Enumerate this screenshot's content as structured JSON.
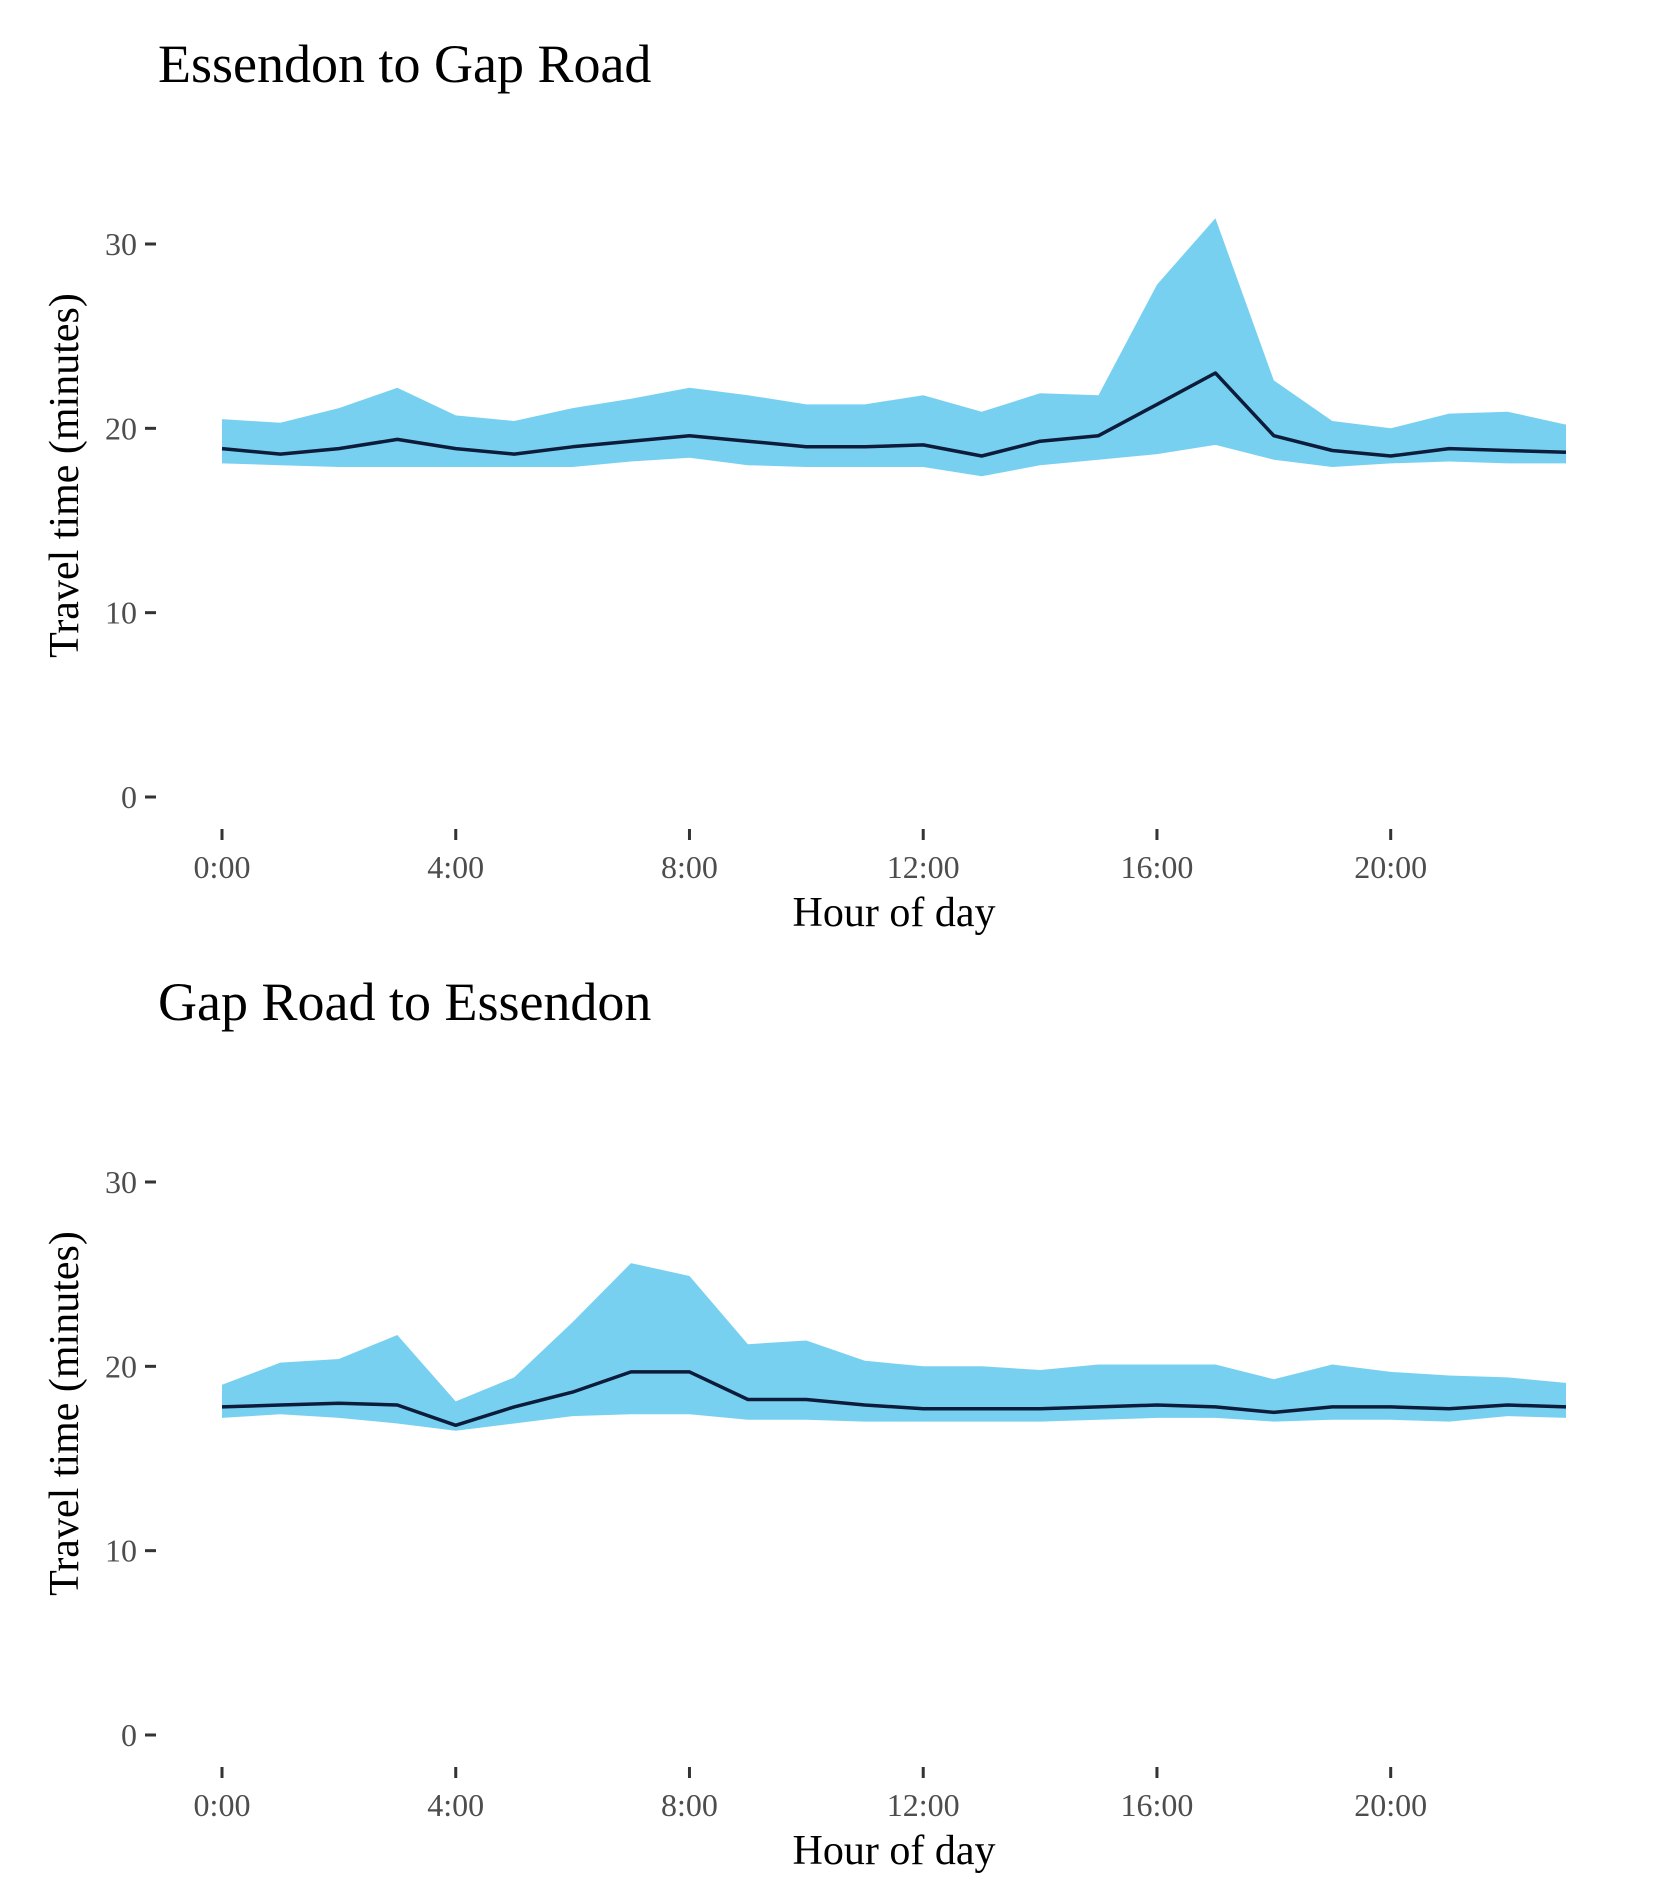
{
  "chart_data": [
    {
      "type": "area",
      "title": "Essendon to Gap Road",
      "xlabel": "Hour of day",
      "ylabel": "Travel time (minutes)",
      "x": [
        0,
        1,
        2,
        3,
        4,
        5,
        6,
        7,
        8,
        9,
        10,
        11,
        12,
        13,
        14,
        15,
        16,
        17,
        18,
        19,
        20,
        21,
        22,
        23
      ],
      "x_ticks": [
        0,
        4,
        8,
        12,
        16,
        20
      ],
      "x_tick_labels": [
        "0:00",
        "4:00",
        "8:00",
        "12:00",
        "16:00",
        "20:00"
      ],
      "y_ticks": [
        0,
        10,
        20,
        30
      ],
      "y_tick_labels": [
        "0",
        "10",
        "20",
        "30"
      ],
      "xlim": [
        -0.5,
        23
      ],
      "ylim": [
        0,
        35
      ],
      "grid": false,
      "band": {
        "lower": [
          18.1,
          18.0,
          17.9,
          17.9,
          17.9,
          17.9,
          17.9,
          18.2,
          18.4,
          18.0,
          17.9,
          17.9,
          17.9,
          17.4,
          18.0,
          18.3,
          18.6,
          19.1,
          18.3,
          17.9,
          18.1,
          18.2,
          18.1,
          18.1
        ],
        "upper": [
          20.5,
          20.3,
          21.1,
          22.2,
          20.7,
          20.4,
          21.1,
          21.6,
          22.2,
          21.8,
          21.3,
          21.3,
          21.8,
          20.9,
          21.9,
          21.8,
          27.8,
          31.4,
          22.6,
          20.4,
          20.0,
          20.8,
          20.9,
          20.2
        ]
      },
      "series": [
        {
          "values": [
            18.9,
            18.6,
            18.9,
            19.4,
            18.9,
            18.6,
            19.0,
            19.3,
            19.6,
            19.3,
            19.0,
            19.0,
            19.1,
            18.5,
            19.3,
            19.6,
            21.3,
            23.0,
            19.6,
            18.8,
            18.5,
            18.9,
            18.8,
            18.7
          ]
        }
      ],
      "colors": {
        "band": "#78d0f1",
        "line": "#0c1c3a"
      }
    },
    {
      "type": "area",
      "title": "Gap Road to Essendon",
      "xlabel": "Hour of day",
      "ylabel": "Travel time (minutes)",
      "x": [
        0,
        1,
        2,
        3,
        4,
        5,
        6,
        7,
        8,
        9,
        10,
        11,
        12,
        13,
        14,
        15,
        16,
        17,
        18,
        19,
        20,
        21,
        22,
        23
      ],
      "x_ticks": [
        0,
        4,
        8,
        12,
        16,
        20
      ],
      "x_tick_labels": [
        "0:00",
        "4:00",
        "8:00",
        "12:00",
        "16:00",
        "20:00"
      ],
      "y_ticks": [
        0,
        10,
        20,
        30
      ],
      "y_tick_labels": [
        "0",
        "10",
        "20",
        "30"
      ],
      "xlim": [
        -0.5,
        23
      ],
      "ylim": [
        0,
        35
      ],
      "grid": false,
      "band": {
        "lower": [
          17.2,
          17.4,
          17.2,
          16.9,
          16.5,
          16.9,
          17.3,
          17.4,
          17.4,
          17.1,
          17.1,
          17.0,
          17.0,
          17.0,
          17.0,
          17.1,
          17.2,
          17.2,
          17.0,
          17.1,
          17.1,
          17.0,
          17.3,
          17.2
        ],
        "upper": [
          19.0,
          20.2,
          20.4,
          21.7,
          18.1,
          19.4,
          22.4,
          25.6,
          24.9,
          21.2,
          21.4,
          20.3,
          20.0,
          20.0,
          19.8,
          20.1,
          20.1,
          20.1,
          19.3,
          20.1,
          19.7,
          19.5,
          19.4,
          19.1
        ]
      },
      "series": [
        {
          "values": [
            17.8,
            17.9,
            18.0,
            17.9,
            16.8,
            17.8,
            18.6,
            19.7,
            19.7,
            18.2,
            18.2,
            17.9,
            17.7,
            17.7,
            17.7,
            17.8,
            17.9,
            17.8,
            17.5,
            17.8,
            17.8,
            17.7,
            17.9,
            17.8
          ]
        }
      ],
      "colors": {
        "band": "#78d0f1",
        "line": "#0c1c3a"
      }
    }
  ]
}
